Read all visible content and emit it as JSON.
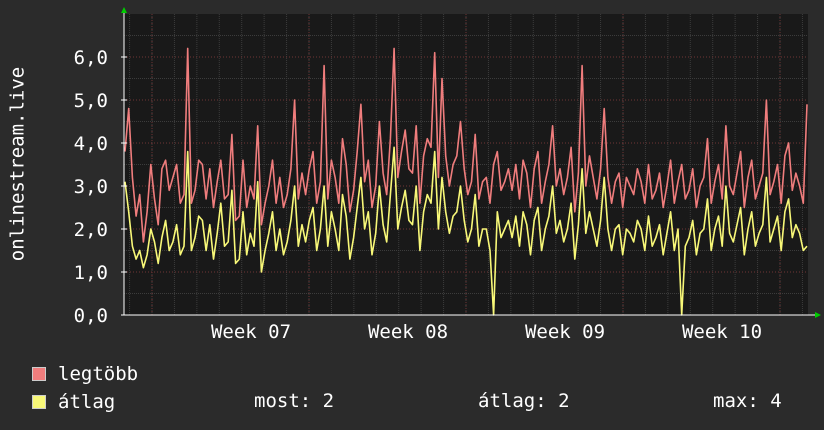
{
  "chart_data": {
    "type": "line",
    "ylabel": "onlinestream.live",
    "y_ticks": [
      "0,0",
      "1,0",
      "2,0",
      "3,0",
      "4,0",
      "5,0",
      "6,0"
    ],
    "ylim": [
      0,
      7
    ],
    "x_ticks": [
      "Week 07",
      "Week 08",
      "Week 09",
      "Week 10"
    ],
    "grid": true,
    "series": [
      {
        "name": "legtöbb",
        "color": "#f07d7d",
        "values": [
          3.8,
          4.8,
          3.2,
          2.3,
          2.8,
          1.7,
          2.4,
          3.5,
          2.7,
          2.1,
          3.4,
          3.6,
          2.9,
          3.2,
          3.5,
          2.6,
          2.8,
          6.2,
          2.6,
          2.9,
          3.6,
          3.5,
          2.7,
          3.4,
          2.5,
          3.1,
          3.6,
          2.7,
          2.8,
          4.2,
          2.2,
          2.3,
          3.6,
          2.5,
          3.0,
          2.7,
          4.4,
          2.1,
          2.6,
          3.0,
          3.6,
          2.6,
          3.2,
          2.5,
          2.8,
          3.4,
          5.0,
          2.7,
          3.3,
          2.8,
          3.4,
          3.8,
          2.6,
          3.1,
          5.8,
          2.7,
          3.6,
          3.2,
          2.6,
          4.1,
          3.5,
          2.4,
          2.9,
          3.8,
          4.9,
          3.1,
          3.6,
          2.5,
          3.0,
          4.5,
          3.3,
          2.8,
          4.1,
          6.2,
          3.2,
          3.8,
          4.3,
          3.4,
          3.3,
          4.4,
          2.6,
          3.7,
          4.1,
          3.9,
          6.1,
          3.2,
          5.5,
          3.7,
          3.0,
          3.5,
          3.7,
          4.5,
          3.4,
          2.8,
          3.1,
          4.2,
          2.7,
          3.1,
          3.2,
          2.6,
          3.5,
          3.8,
          2.9,
          3.1,
          3.4,
          2.9,
          3.5,
          2.7,
          3.6,
          3.3,
          2.5,
          3.4,
          3.8,
          2.6,
          3.1,
          3.5,
          4.4,
          3.0,
          3.4,
          2.8,
          3.2,
          3.9,
          2.4,
          3.3,
          5.8,
          3.0,
          3.7,
          3.2,
          2.7,
          3.4,
          4.8,
          3.2,
          2.6,
          3.1,
          3.3,
          2.5,
          3.2,
          3.0,
          2.8,
          3.4,
          3.1,
          2.6,
          3.5,
          2.7,
          2.9,
          3.3,
          2.5,
          3.0,
          3.6,
          2.6,
          3.1,
          3.5,
          2.7,
          2.9,
          3.4,
          2.5,
          3.0,
          3.2,
          4.1,
          2.6,
          3.1,
          3.5,
          2.7,
          4.4,
          3.0,
          2.8,
          3.3,
          3.8,
          2.5,
          3.2,
          3.6,
          2.7,
          3.0,
          3.3,
          5.0,
          2.8,
          3.1,
          3.5,
          2.6,
          3.7,
          4.0,
          2.9,
          3.3,
          3.0,
          2.6,
          4.9
        ]
      },
      {
        "name": "átlag",
        "color": "#f8f878",
        "values": [
          3.1,
          2.4,
          1.6,
          1.3,
          1.5,
          1.1,
          1.4,
          2.0,
          1.7,
          1.2,
          1.8,
          2.2,
          1.5,
          1.7,
          2.1,
          1.4,
          1.6,
          3.8,
          1.5,
          1.8,
          2.3,
          2.2,
          1.5,
          2.1,
          1.3,
          1.9,
          2.6,
          1.6,
          1.7,
          2.9,
          1.2,
          1.3,
          2.4,
          1.4,
          1.9,
          1.6,
          3.1,
          1.0,
          1.5,
          1.9,
          2.4,
          1.5,
          2.0,
          1.4,
          1.7,
          2.2,
          3.0,
          1.6,
          2.1,
          1.7,
          2.2,
          2.5,
          1.5,
          2.0,
          3.0,
          1.6,
          2.4,
          2.0,
          1.5,
          2.8,
          2.3,
          1.3,
          1.8,
          2.5,
          3.2,
          2.0,
          2.4,
          1.4,
          1.9,
          3.0,
          2.1,
          1.7,
          2.8,
          3.9,
          2.0,
          2.5,
          2.9,
          2.2,
          2.1,
          3.0,
          1.5,
          2.4,
          2.8,
          2.6,
          3.8,
          2.0,
          3.2,
          2.4,
          1.9,
          2.3,
          2.4,
          3.0,
          2.2,
          1.7,
          2.0,
          2.8,
          1.6,
          2.0,
          2.0,
          1.5,
          0.0,
          2.4,
          1.8,
          2.0,
          2.2,
          1.8,
          2.3,
          1.6,
          2.4,
          2.1,
          1.4,
          2.2,
          2.5,
          1.5,
          2.0,
          2.3,
          3.0,
          1.9,
          2.2,
          1.7,
          2.0,
          2.6,
          1.3,
          2.1,
          3.4,
          1.9,
          2.4,
          2.0,
          1.6,
          2.2,
          3.2,
          2.0,
          1.5,
          2.0,
          2.1,
          1.4,
          2.0,
          1.9,
          1.7,
          2.2,
          2.0,
          1.5,
          2.3,
          1.6,
          1.8,
          2.1,
          1.4,
          1.9,
          2.4,
          1.5,
          2.0,
          0.0,
          1.6,
          1.8,
          2.2,
          1.4,
          1.9,
          2.0,
          2.7,
          1.5,
          2.0,
          2.3,
          1.6,
          3.0,
          1.9,
          1.7,
          2.1,
          2.5,
          1.4,
          2.0,
          2.4,
          1.6,
          1.9,
          2.1,
          3.2,
          1.7,
          2.0,
          2.3,
          1.5,
          2.4,
          2.7,
          1.8,
          2.1,
          1.9,
          1.5,
          1.6
        ]
      }
    ]
  },
  "legend": [
    {
      "label": "legtöbb",
      "color": "#f07d7d"
    },
    {
      "label": "átlag",
      "color": "#f8f878"
    }
  ],
  "stats": {
    "most": "most: 2",
    "atlag": "átlag: 2",
    "max": "max: 4"
  }
}
